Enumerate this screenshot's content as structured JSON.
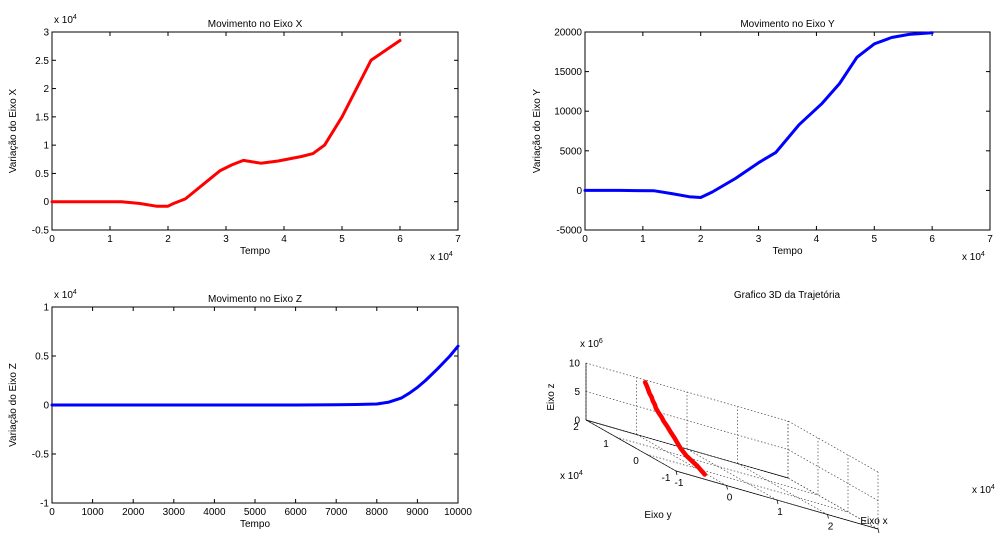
{
  "chart_data": [
    {
      "type": "line",
      "title": "Movimento no Eixo X",
      "xlabel": "Tempo",
      "ylabel": "Variação do Eixo X",
      "x_exponent": "x 10",
      "x_exponent_power": "4",
      "y_exponent": "x 10",
      "y_exponent_power": "4",
      "xlim": [
        0,
        7
      ],
      "ylim": [
        -0.5,
        3
      ],
      "xticks": [
        "0",
        "1",
        "2",
        "3",
        "4",
        "5",
        "6",
        "7"
      ],
      "yticks": [
        "-0.5",
        "0",
        "0.5",
        "1",
        "1.5",
        "2",
        "2.5",
        "3"
      ],
      "color": "#ff0000",
      "series": [
        {
          "x": [
            0,
            0.5,
            1.2,
            1.5,
            1.8,
            2.0,
            2.1,
            2.3,
            2.6,
            2.9,
            3.1,
            3.3,
            3.6,
            3.9,
            4.3,
            4.5,
            4.7,
            5.0,
            5.5,
            6.0
          ],
          "y": [
            0,
            0,
            0,
            -0.03,
            -0.08,
            -0.08,
            -0.03,
            0.05,
            0.3,
            0.55,
            0.65,
            0.73,
            0.68,
            0.72,
            0.8,
            0.85,
            1.0,
            1.5,
            2.5,
            2.85
          ]
        }
      ]
    },
    {
      "type": "line",
      "title": "Movimento no Eixo Y",
      "xlabel": "Tempo",
      "ylabel": "Variação do Eixo Y",
      "x_exponent": "x 10",
      "x_exponent_power": "4",
      "xlim": [
        0,
        7
      ],
      "ylim": [
        -5000,
        20000
      ],
      "xticks": [
        "0",
        "1",
        "2",
        "3",
        "4",
        "5",
        "6",
        "7"
      ],
      "yticks": [
        "-5000",
        "0",
        "5000",
        "10000",
        "15000",
        "20000"
      ],
      "color": "#0000ff",
      "series": [
        {
          "x": [
            0,
            0.6,
            1.2,
            1.5,
            1.8,
            2.0,
            2.2,
            2.6,
            3.0,
            3.3,
            3.7,
            4.1,
            4.4,
            4.7,
            5.0,
            5.3,
            5.6,
            6.0
          ],
          "y": [
            0,
            0,
            -50,
            -400,
            -800,
            -900,
            -200,
            1500,
            3500,
            4800,
            8300,
            11000,
            13500,
            16800,
            18500,
            19300,
            19700,
            19900
          ]
        }
      ]
    },
    {
      "type": "line",
      "title": "Movimento no Eixo Z",
      "xlabel": "Tempo",
      "ylabel": "Variação do Eixo Z",
      "y_exponent": "x 10",
      "y_exponent_power": "4",
      "xlim": [
        0,
        10000
      ],
      "ylim": [
        -1,
        1
      ],
      "xticks": [
        "0",
        "1000",
        "2000",
        "3000",
        "4000",
        "5000",
        "6000",
        "7000",
        "8000",
        "9000",
        "10000"
      ],
      "yticks": [
        "-1",
        "-0.5",
        "0",
        "0.5",
        "1"
      ],
      "color": "#0000ff",
      "series": [
        {
          "x": [
            0,
            2000,
            4000,
            6000,
            7000,
            7500,
            8000,
            8300,
            8600,
            8800,
            9000,
            9200,
            9500,
            9800,
            10000
          ],
          "y": [
            0,
            0,
            0,
            0,
            0.002,
            0.005,
            0.01,
            0.03,
            0.07,
            0.12,
            0.18,
            0.25,
            0.37,
            0.5,
            0.6
          ]
        }
      ]
    },
    {
      "type": "line3d",
      "title": "Grafico 3D da Trajetória",
      "xlabel": "Eixo x",
      "ylabel": "Eixo y",
      "zlabel": "Eixo z",
      "x_exponent": "x 10",
      "x_exponent_power": "4",
      "y_exponent": "x 10",
      "y_exponent_power": "4",
      "z_exponent": "x 10",
      "z_exponent_power": "6",
      "xlim": [
        -1,
        3
      ],
      "ylim": [
        -1,
        2
      ],
      "zlim": [
        0,
        10
      ],
      "xticks": [
        -1,
        0,
        1,
        2,
        3
      ],
      "yticks": [
        -1,
        0,
        1,
        2
      ],
      "zticks": [
        0,
        5,
        10
      ],
      "color": "#ff0000",
      "series": [
        {
          "x": [
            -0.1,
            -0.04,
            0.01,
            0.05,
            0.09,
            0.12,
            0.14,
            0.17,
            0.19,
            0.21,
            0.22,
            0.23,
            0.24,
            0.25,
            0.26,
            0.27,
            0.28,
            0.29,
            0.29
          ],
          "y": [
            -0.44,
            -0.1,
            0.35,
            0.61,
            0.78,
            0.94,
            1.1,
            1.26,
            1.42,
            1.52,
            1.63,
            1.74,
            1.79,
            1.88,
            1.93,
            2.02,
            2.08,
            2.14,
            2.2
          ],
          "z": [
            0.0,
            0.6,
            1.2,
            1.81,
            2.32,
            2.91,
            3.48,
            4.05,
            4.58,
            5.04,
            5.45,
            5.97,
            6.44,
            6.94,
            7.4,
            7.86,
            8.34,
            8.8,
            9.3
          ]
        }
      ]
    }
  ]
}
